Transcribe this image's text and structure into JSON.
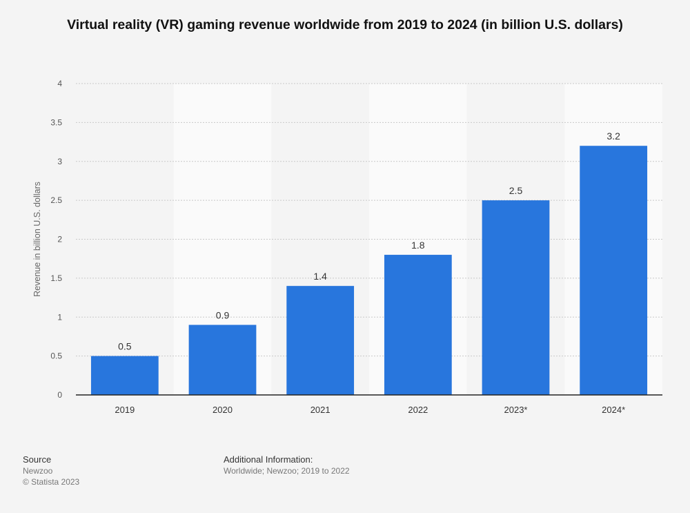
{
  "chart_data": {
    "type": "bar",
    "title": "Virtual reality (VR) gaming revenue worldwide from 2019 to 2024 (in billion U.S. dollars)",
    "xlabel": "",
    "ylabel": "Revenue in billion U.S. dollars",
    "categories": [
      "2019",
      "2020",
      "2021",
      "2022",
      "2023*",
      "2024*"
    ],
    "values": [
      0.5,
      0.9,
      1.4,
      1.8,
      2.5,
      3.2
    ],
    "data_labels": [
      "0.5",
      "0.9",
      "1.4",
      "1.8",
      "2.5",
      "3.2"
    ],
    "ylim": [
      0,
      4
    ],
    "yticks": [
      "0",
      "0.5",
      "1",
      "1.5",
      "2",
      "2.5",
      "3",
      "3.5",
      "4"
    ],
    "grid": true,
    "bar_color": "#2876dd"
  },
  "footer": {
    "source_heading": "Source",
    "source_name": "Newzoo",
    "copyright": "© Statista 2023",
    "additional_heading": "Additional Information:",
    "additional_text": "Worldwide; Newzoo; 2019 to 2022"
  }
}
